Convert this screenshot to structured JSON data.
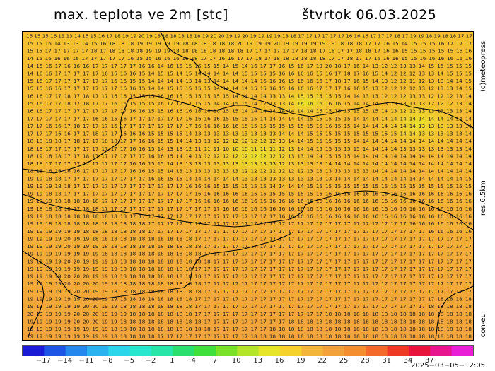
{
  "header": {
    "title": "max. teplota ve 2m [stc]",
    "date": "štvrtok 06.03.2025"
  },
  "side": {
    "copyright": "(c)meteopress",
    "resolution": "res.6.5km",
    "model": "icon-eu"
  },
  "map": {
    "field_color_low": "#f5d22c",
    "field_color_high": "#f3a23a",
    "cool_patch_color": "#e6e52a",
    "border_color": "#000000",
    "rows": [
      "15 15 15 16 13 13 14 15 15 16 17 18 19 19 20 19 18 18 18 18 18 18 19 20 20 19 19 20 19 19 19 19 18 18 17 17 17 17 17 17 16 16 16 17 17 17 18 17 19 19 18 19 18 18 17 17",
      "15 15 16 14 13 13 14 15 16 18 18 18 19 19 19 19 19 18 18 18 18 18 18 20 19 19 19 20 19 19 19 19 19 19 18 18 18 17 17 16 15 14 15 15 15 16 17 17 17",
      "15 15 17 17 17 17 17 18 17 18 18 18 18 19 19 19 18 18 18 18 18 18 18 18 17 17 17 17 17 17 18 18 17 18 17 17 18 18 17 16 16 15 15 15 15 15 15 15 16",
      "14 15 16 16 16 16 17 17 17 17 17 16 15 15 16 16 16 16 18 17 17 16 16 17 17 18 17 18 18 18 18 18 18 17 17 18 17 17 16 16 16 15 15 16 16 16 16 16 16",
      "14 15 16 17 16 16 16 17 17 17 17 17 16 16 14 16 15 15 16 15 15 14 15 14 16 17 17 16 15 16 17 19 20 18 17 16 14 13 12 12 13 13 14 15 15 15 15 15",
      "14 16 16 17 17 17 17 17 16 16 16 16 15 14 15 15 14 15 14 14 14 14 14 15 15 15 15 16 16 16 16 16 16 17 18 17 16 15 14 12 12 12 13 13 14 15 15 15",
      "15 16 17 17 17 17 17 17 17 16 16 15 15 14 14 14 14 13 14 13 14 14 14 14 14 16 16 16 15 16 16 16 17 18 17 16 15 14 13 12 12 11 12 13 13 14 14 15",
      "15 15 16 16 17 17 17 17 17 17 16 16 15 14 14 15 15 15 15 15 14 14 14 14 15 15 16 15 16 16 16 17 17 17 16 16 15 13 12 12 12 12 13 12 13 13 14 15",
      "16 16 17 17 18 17 18 17 17 16 16 15 15 15 16 16 15 15 15 15 15 15 14 14 14 14 13 13 14 15 15 15 15 15 14 14 13 13 12 12 12 13 13 12 12 12 13 14",
      "15 16 17 17 18 17 18 17 17 16 16 15 15 15 16 17 17 17 15 15 14 14 15 15 14 12 13 13 14 16 16 16 16 16 15 14 14 14 13 13 13 13 13 12 12 12 13 14",
      "16 16 17 17 17 17 17 17 17 17 17 16 16 15 15 16 16 16 16 16 16 15 15 14 14 14 14 14 14 14 14 15 15 15 15 15 15 15 14 13 12 12 13 13 13 13 13 14",
      "17 17 17 17 17 17 17 16 16 15 16 17 17 17 17 17 17 16 16 16 16 15 15 15 15 14 14 14 14 14 15 15 15 15 15 14 14 14 14 14 14 14 14 14 14 14 14 14",
      "17 17 16 16 17 18 17 17 17 16 17 17 17 17 17 17 17 17 16 16 16 16 16 15 15 15 15 15 15 15 15 15 16 15 15 14 14 14 14 14 14 14 13 13 13 13 13 14",
      "17 17 17 16 16 17 17 18 17 17 16 16 16 15 15 15 15 14 13 13 13 13 13 13 13 13 13 14 14 14 15 15 15 15 15 15 15 15 15 15 14 14 13 13 13 13 13 14",
      "18 18 18 18 17 18 17 17 18 18 17 17 16 16 15 15 14 14 13 13 12 12 12 12 12 12 12 13 14 14 15 15 15 15 15 14 14 14 14 14 14 14 14 14 14 14 14 14",
      "18 18 17 17 17 17 17 17 17 17 17 16 16 15 14 13 13 12 11 11 11 10 10 10 11 11 11 12 13 14 14 15 15 15 15 15 14 14 14 14 13 13 13 13 13 13 13 14",
      "18 19 18 18 17 17 18 17 17 17 17 17 17 16 16 15 14 14 13 12 12 12 12 12 12 12 12 12 13 13 14 14 15 15 15 14 14 14 14 14 14 14 14 14 14 14 14 14",
      "18 18 17 17 17 17 17 17 17 17 17 16 16 15 15 14 13 13 13 13 13 13 13 13 13 13 13 12 13 13 13 13 14 14 14 14 14 14 14 14 14 14 14 14 14 14 14 14",
      "18 18 16 16 16 16 17 17 17 17 17 16 16 15 15 14 13 13 13 13 13 13 13 12 12 12 12 12 12 12 13 13 13 13 13 13 13 14 14 14 14 14 14 14 14 14 14 14",
      "19 19 18 18 17 17 17 17 17 17 17 17 17 16 16 15 15 14 14 14 14 14 14 13 13 13 13 13 13 13 13 13 13 14 14 14 14 14 14 14 14 14 14 14 14 14 14 15",
      "19 19 19 18 18 17 17 17 17 17 17 17 17 17 17 17 17 16 16 16 15 15 15 15 15 15 14 14 14 14 15 15 15 15 15 15 15 15 15 15 15 15 15 15 15 15 15 15",
      "19 19 18 18 17 17 17 17 17 17 17 17 17 17 17 17 17 17 16 16 16 16 16 16 15 15 15 15 15 15 15 16 16 16 16 16 16 16 16 16 16 16 16 16 16 16 16 16",
      "19 19 19 18 18 18 18 18 17 17 17 17 17 17 17 17 17 17 16 16 16 16 16 16 16 16 16 16 16 16 16 16 16 16 16 16 16 16 16 16 16 16 16 16 16 16 16 16",
      "19 18 18 18 18 17 18 18 17 17 17 17 17 17 17 17 17 17 17 17 17 16 16 16 16 16 16 16 16 16 16 16 16 16 16 16 16 16 16 16 16 16 16 16 16 16 16 16",
      "19 19 18 18 18 18 18 18 18 18 18 17 17 17 17 17 17 17 17 17 17 17 17 17 17 17 17 16 16 16 16 16 16 16 16 16 16 16 16 16 16 16 16 16 16 16 16 16",
      "19 19 18 18 18 18 18 18 18 18 18 18 18 17 17 17 17 17 17 17 17 17 17 17 17 17 17 17 17 17 17 17 17 17 17 17 17 17 17 17 17 16 16 16 16 16 16 16",
      "19 19 19 19 19 19 18 18 18 18 18 18 18 17 17 17 17 17 17 17 17 17 17 17 17 17 17 17 17 17 17 17 17 17 17 17 17 17 17 17 17 17 17 16 16 16 16 16",
      "19 19 19 19 20 19 19 18 18 18 18 18 18 18 18 18 18 18 17 17 17 17 17 17 17 17 17 17 17 17 17 17 17 17 17 17 17 17 17 17 17 17 17 17 17 17 17 17",
      "19 19 19 19 20 19 19 19 18 18 18 18 18 18 18 18 18 18 18 17 17 17 17 17 17 17 17 17 17 17 17 17 17 17 17 17 17 17 17 17 17 17 17 17 17 17 17 17",
      "19 19 19 19 19 19 19 19 18 18 18 18 18 18 18 18 18 18 18 17 17 17 17 17 17 17 17 17 17 17 17 17 17 17 17 17 17 17 17 17 17 17 17 17 17 17 17 17",
      "19 19 19 19 20 20 19 19 19 18 18 18 18 18 18 18 18 18 18 18 17 17 17 17 17 17 17 17 17 17 17 17 17 17 17 17 17 17 17 17 17 17 17 17 17 17 17 17",
      "19 19 19 19 19 19 19 19 19 19 18 18 18 18 18 18 18 18 17 17 17 17 17 17 17 17 17 17 17 17 17 17 17 17 17 17 17 17 17 17 17 17 17 17 17 17 17 17",
      "19 19 19 19 20 20 20 19 19 18 18 18 18 18 18 18 18 18 18 17 17 17 17 17 17 17 17 17 17 17 17 17 17 17 17 17 17 17 17 17 17 17 17 17 17 17 17 17",
      "19 19 19 19 20 20 20 20 19 18 18 18 18 18 18 18 18 18 18 17 17 17 17 17 17 17 17 17 17 17 17 17 17 17 17 17 17 17 17 17 17 17 17 17 17 17 17 17",
      "19 19 19 19 19 20 20 19 19 18 18 18 18 18 18 18 18 18 18 17 17 17 17 17 17 17 17 17 17 17 17 17 17 17 17 17 17 17 17 17 17 17 17 17 17 17 17 17",
      "19 19 19 19 19 19 20 20 19 19 18 18 18 18 18 18 18 18 17 17 17 17 17 17 17 17 17 17 17 17 17 17 17 17 17 17 17 17 17 17 17 17 17 17 18 18 18 18",
      "19 19 19 19 19 19 20 20 19 19 18 18 18 18 18 18 18 18 17 17 17 17 17 17 17 17 17 17 17 17 17 17 17 17 17 17 17 17 17 17 17 17 17 18 18 18 18 18",
      "20 19 19 19 19 20 20 20 19 19 19 18 18 18 18 18 18 18 17 17 17 17 17 17 17 17 17 17 17 17 17 17 18 18 18 18 18 18 18 18 18 18 18 18 18 18 18 18",
      "19 19 19 19 19 20 20 20 19 19 18 18 18 18 18 18 18 18 18 17 17 17 17 17 17 17 17 17 18 18 18 18 18 18 18 18 18 18 18 18 18 18 18 18 18 18 18 18",
      "19 19 19 19 19 19 19 19 19 18 18 18 18 18 18 18 18 18 18 18 17 17 17 17 17 17 18 18 18 18 18 18 18 18 18 18 18 18 18 18 18 18 18 18 18 18 18 18",
      "19 19 19 19 19 19 19 19 19 18 18 18 18 18 17 17 17 17 17 17 17 17 17 17 18 18 18 18 18 18 18 18 18 18 18 18 18 18 18 18 18 18 18 18 18 18 18 18"
    ]
  },
  "scale": {
    "labels": [
      "−17",
      "−14",
      "−11",
      "−8",
      "−5",
      "−2",
      "1",
      "4",
      "7",
      "10",
      "13",
      "16",
      "19",
      "22",
      "25",
      "28",
      "31",
      "34",
      "37"
    ],
    "colors": [
      "#1b1bd6",
      "#1f55e6",
      "#2488ee",
      "#2ab2f0",
      "#2cd6ea",
      "#29e6cf",
      "#27e6a8",
      "#2adf6e",
      "#3fe03c",
      "#7be22a",
      "#b3e52a",
      "#e6e52a",
      "#f5d22c",
      "#f3b53a",
      "#f3a23a",
      "#f58e2e",
      "#f36a2a",
      "#ee3a24",
      "#e8143c",
      "#e8168e",
      "#e81fd6"
    ],
    "run": "2025−03−05−12:05"
  }
}
